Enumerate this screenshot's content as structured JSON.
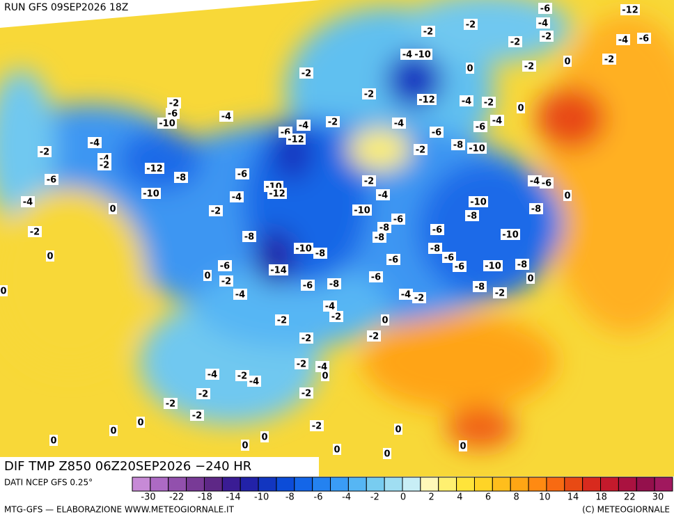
{
  "header": {
    "run": "RUN GFS 09SEP2026 18Z"
  },
  "map": {
    "title": "DIF TMP Z850 06Z20SEP2026 −240 HR",
    "contour_labels": [
      -6,
      -12,
      -2,
      -2,
      -4,
      -2,
      -2,
      -4,
      -6,
      -4,
      -10,
      0,
      -2,
      0,
      -2,
      -2,
      -2,
      -12,
      -4,
      -2,
      0,
      -2,
      -6,
      -10,
      -4,
      -2,
      -4,
      -6,
      -12,
      -4,
      -6,
      -6,
      -4,
      -4,
      -2,
      -4,
      -2,
      -12,
      -8,
      -6,
      -2,
      -8,
      -10,
      -6,
      -10,
      -10,
      -12,
      -2,
      -4,
      -4,
      -4,
      -6,
      -4,
      0,
      -2,
      -10,
      -10,
      -8,
      0,
      -6,
      -8,
      -8,
      -8,
      -6,
      -10,
      -2,
      -8,
      -10,
      -8,
      -8,
      0,
      -6,
      -6,
      -6,
      -6,
      -10,
      -8,
      0,
      -2,
      -14,
      -6,
      -8,
      -6,
      -8,
      0,
      -4,
      -4,
      -2,
      -2,
      -4,
      -2,
      -2,
      0,
      -2,
      -2,
      -2,
      -4,
      0,
      -4,
      -2,
      -4,
      -2,
      -2,
      -2,
      -2,
      0,
      -2,
      0,
      0,
      0,
      0,
      0,
      0,
      0,
      0,
      0
    ]
  },
  "legend": {
    "source": "DATI NCEP GFS 0.25°",
    "colors": [
      "#c78ad6",
      "#ad6ac4",
      "#9250ad",
      "#783a96",
      "#5e2886",
      "#3a1c94",
      "#2222a8",
      "#1236c0",
      "#0c4cd8",
      "#1466e8",
      "#2482f0",
      "#3a9cf5",
      "#56b6f4",
      "#78ccf0",
      "#a0def2",
      "#c8eef6",
      "#fff8b8",
      "#fff070",
      "#ffe43a",
      "#ffd426",
      "#ffbe1c",
      "#ffa614",
      "#ff8a12",
      "#f86a12",
      "#e84a14",
      "#d82a1e",
      "#c41a2c",
      "#aa1240",
      "#94104c",
      "#a0185e"
    ],
    "ticks": [
      -30,
      -22,
      -18,
      -14,
      -10,
      -8,
      -6,
      -4,
      -2,
      0,
      2,
      4,
      6,
      8,
      10,
      14,
      18,
      22,
      30
    ]
  },
  "footer": {
    "left": "MTG-GFS — ELABORAZIONE WWW.METEOGIORNALE.IT",
    "right": "(C) METEOGIORNALE"
  }
}
